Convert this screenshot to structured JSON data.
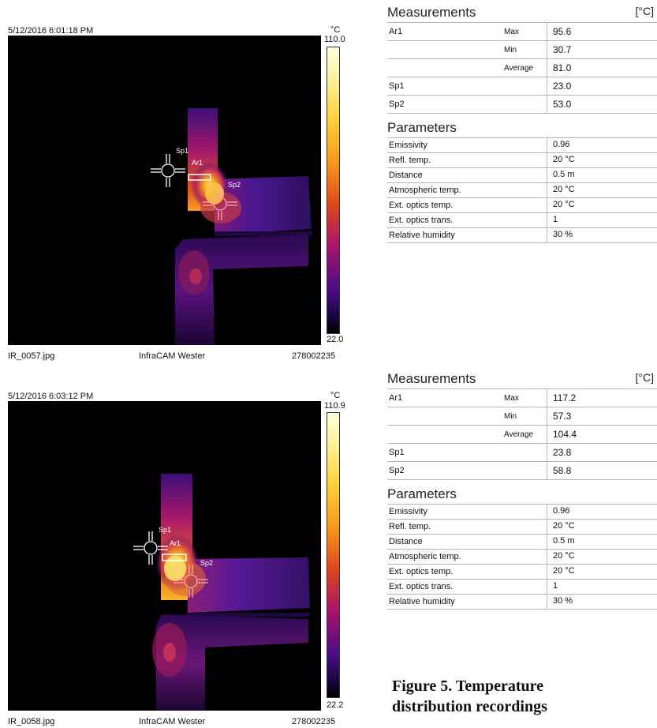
{
  "images": [
    {
      "timestamp": "5/12/2016 6:01:18 PM",
      "scale_unit": "°C",
      "scale_max": "110.0",
      "scale_min": "22.0",
      "filename": "IR_0057.jpg",
      "camera": "InfraCAM Wester",
      "serial": "278002235",
      "spot1_label": "Sp1",
      "spot2_label": "Sp2",
      "area_label": "Ar1"
    },
    {
      "timestamp": "5/12/2016 6:03:12 PM",
      "scale_unit": "°C",
      "scale_max": "110.9",
      "scale_min": "22.2",
      "filename": "IR_0058.jpg",
      "camera": "InfraCAM Wester",
      "serial": "278002235",
      "spot1_label": "Sp1",
      "spot2_label": "Sp2",
      "area_label": "Ar1"
    }
  ],
  "tables": [
    {
      "measurements_title": "Measurements",
      "unit": "[°C]",
      "rows": [
        {
          "name": "Ar1",
          "stat": "Max",
          "value": "95.6"
        },
        {
          "name": "",
          "stat": "Min",
          "value": "30.7"
        },
        {
          "name": "",
          "stat": "Average",
          "value": "81.0"
        },
        {
          "name": "Sp1",
          "stat": "",
          "value": "23.0"
        },
        {
          "name": "Sp2",
          "stat": "",
          "value": "53.0"
        }
      ],
      "parameters_title": "Parameters",
      "params": [
        {
          "name": "Emissivity",
          "value": "0.96"
        },
        {
          "name": "Refl. temp.",
          "value": "20 °C"
        },
        {
          "name": "Distance",
          "value": "0.5 m"
        },
        {
          "name": "Atmospheric temp.",
          "value": "20 °C"
        },
        {
          "name": "Ext. optics temp.",
          "value": "20 °C"
        },
        {
          "name": "Ext. optics trans.",
          "value": "1"
        },
        {
          "name": "Relative humidity",
          "value": "30 %"
        }
      ]
    },
    {
      "measurements_title": "Measurements",
      "unit": "[°C]",
      "rows": [
        {
          "name": "Ar1",
          "stat": "Max",
          "value": "117.2"
        },
        {
          "name": "",
          "stat": "Min",
          "value": "57.3"
        },
        {
          "name": "",
          "stat": "Average",
          "value": "104.4"
        },
        {
          "name": "Sp1",
          "stat": "",
          "value": "23.8"
        },
        {
          "name": "Sp2",
          "stat": "",
          "value": "58.8"
        }
      ],
      "parameters_title": "Parameters",
      "params": [
        {
          "name": "Emissivity",
          "value": "0.96"
        },
        {
          "name": "Refl. temp.",
          "value": "20 °C"
        },
        {
          "name": "Distance",
          "value": "0.5 m"
        },
        {
          "name": "Atmospheric temp.",
          "value": "20 °C"
        },
        {
          "name": "Ext. optics temp.",
          "value": "20 °C"
        },
        {
          "name": "Ext. optics trans.",
          "value": "1"
        },
        {
          "name": "Relative humidity",
          "value": "30 %"
        }
      ]
    }
  ],
  "caption_line1": "Figure 5. Temperature",
  "caption_line2": "distribution recordings"
}
